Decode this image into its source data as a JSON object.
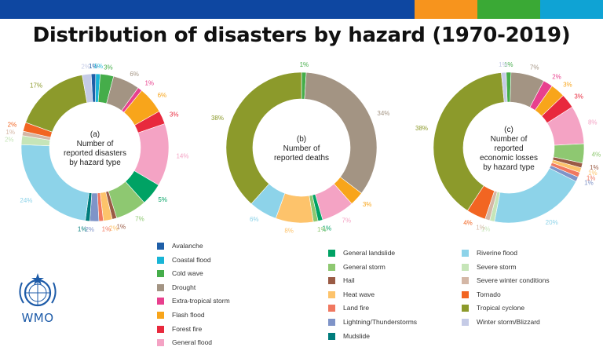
{
  "title": "Distribution of disasters by hazard (1970-2019)",
  "colors": {
    "topbar": [
      "#0e47a1",
      "#f7941d",
      "#3aa935",
      "#0fa3d4"
    ],
    "text": "#111111",
    "wmo_blue": "#1d5ba8"
  },
  "logo": {
    "text": "WMO",
    "icon": "wmo-emblem-icon"
  },
  "legend": [
    {
      "name": "Avalanche",
      "color": "#1f5fa8"
    },
    {
      "name": "Coastal flood",
      "color": "#19b5d6"
    },
    {
      "name": "Cold wave",
      "color": "#45ad4a"
    },
    {
      "name": "Drought",
      "color": "#a39483"
    },
    {
      "name": "Extra-tropical storm",
      "color": "#e8408e"
    },
    {
      "name": "Flash flood",
      "color": "#f8a51b"
    },
    {
      "name": "Forest fire",
      "color": "#e8293d"
    },
    {
      "name": "General flood",
      "color": "#f4a3c4"
    },
    {
      "name": "General landslide",
      "color": "#00a264"
    },
    {
      "name": "General storm",
      "color": "#8ec871"
    },
    {
      "name": "Hail",
      "color": "#9a5b45"
    },
    {
      "name": "Heat wave",
      "color": "#fdc36b"
    },
    {
      "name": "Land fire",
      "color": "#f07860"
    },
    {
      "name": "Lightning/Thunderstorms",
      "color": "#7f94c8"
    },
    {
      "name": "Mudslide",
      "color": "#007c7c"
    },
    {
      "name": "Riverine flood",
      "color": "#8dd3e9"
    },
    {
      "name": "Severe storm",
      "color": "#c6e5b8"
    },
    {
      "name": "Severe winter conditions",
      "color": "#d4b7a6"
    },
    {
      "name": "Tornado",
      "color": "#f26522"
    },
    {
      "name": "Tropical cyclone",
      "color": "#8c9a2b"
    },
    {
      "name": "Winter storm/Blizzard",
      "color": "#c5cbe6"
    }
  ],
  "chart_data": [
    {
      "type": "pie",
      "title": "(a)\nNumber of\nreported disasters\nby hazard type",
      "slices": [
        {
          "label": "Avalanche",
          "value": 1,
          "text": "1%"
        },
        {
          "label": "Coastal flood",
          "value": 1,
          "text": "1%"
        },
        {
          "label": "Cold wave",
          "value": 3,
          "text": "3%"
        },
        {
          "label": "Drought",
          "value": 6,
          "text": "6%"
        },
        {
          "label": "Extra-tropical storm",
          "value": 1,
          "text": "1%"
        },
        {
          "label": "Flash flood",
          "value": 6,
          "text": "6%"
        },
        {
          "label": "Forest fire",
          "value": 3,
          "text": "3%"
        },
        {
          "label": "General flood",
          "value": 14,
          "text": "14%"
        },
        {
          "label": "General landslide",
          "value": 5,
          "text": "5%"
        },
        {
          "label": "General storm",
          "value": 7,
          "text": "7%"
        },
        {
          "label": "Hail",
          "value": 1,
          "text": "1%"
        },
        {
          "label": "Heat wave",
          "value": 2,
          "text": "2%"
        },
        {
          "label": "Land fire",
          "value": 1,
          "text": "1%"
        },
        {
          "label": "Lightning/Thunderstorms",
          "value": 2,
          "text": "2%"
        },
        {
          "label": "Mudslide",
          "value": 1,
          "text": "1%"
        },
        {
          "label": "Riverine flood",
          "value": 24,
          "text": "24%"
        },
        {
          "label": "Severe storm",
          "value": 2,
          "text": "2%"
        },
        {
          "label": "Severe winter conditions",
          "value": 1,
          "text": "1%"
        },
        {
          "label": "Tornado",
          "value": 2,
          "text": "2%"
        },
        {
          "label": "Tropical cyclone",
          "value": 17,
          "text": "17%"
        },
        {
          "label": "Winter storm/Blizzard",
          "value": 2,
          "text": "2%"
        }
      ]
    },
    {
      "type": "pie",
      "title": "(b)\nNumber of\nreported deaths",
      "slices": [
        {
          "label": "Cold wave",
          "value": 1,
          "text": "1%"
        },
        {
          "label": "Drought",
          "value": 34,
          "text": "34%"
        },
        {
          "label": "Flash flood",
          "value": 3,
          "text": "3%"
        },
        {
          "label": "General flood",
          "value": 7,
          "text": "7%"
        },
        {
          "label": "General landslide",
          "value": 1,
          "text": "1%"
        },
        {
          "label": "General storm",
          "value": 1,
          "text": "1%"
        },
        {
          "label": "Heat wave",
          "value": 8,
          "text": "8%"
        },
        {
          "label": "Riverine flood",
          "value": 6,
          "text": "6%"
        },
        {
          "label": "Tropical cyclone",
          "value": 38,
          "text": "38%"
        }
      ]
    },
    {
      "type": "pie",
      "title": "(c)\nNumber of\nreported\neconomic losses\nby hazard type",
      "slices": [
        {
          "label": "Cold wave",
          "value": 1,
          "text": "1%"
        },
        {
          "label": "Drought",
          "value": 7,
          "text": "7%"
        },
        {
          "label": "Extra-tropical storm",
          "value": 2,
          "text": "2%"
        },
        {
          "label": "Flash flood",
          "value": 3,
          "text": "3%"
        },
        {
          "label": "Forest fire",
          "value": 3,
          "text": "3%"
        },
        {
          "label": "General flood",
          "value": 8,
          "text": "8%"
        },
        {
          "label": "General storm",
          "value": 4,
          "text": "4%"
        },
        {
          "label": "Hail",
          "value": 1,
          "text": "1%"
        },
        {
          "label": "Heat wave",
          "value": 1,
          "text": "1%"
        },
        {
          "label": "Land fire",
          "value": 1,
          "text": "1%"
        },
        {
          "label": "Lightning/Thunderstorms",
          "value": 1,
          "text": "1%"
        },
        {
          "label": "Riverine flood",
          "value": 20,
          "text": "20%"
        },
        {
          "label": "Severe storm",
          "value": 1,
          "text": "1%"
        },
        {
          "label": "Severe winter conditions",
          "value": 1,
          "text": "1%"
        },
        {
          "label": "Tornado",
          "value": 4,
          "text": "4%"
        },
        {
          "label": "Tropical cyclone",
          "value": 38,
          "text": "38%"
        },
        {
          "label": "Winter storm/Blizzard",
          "value": 1,
          "text": "1%"
        }
      ]
    }
  ]
}
